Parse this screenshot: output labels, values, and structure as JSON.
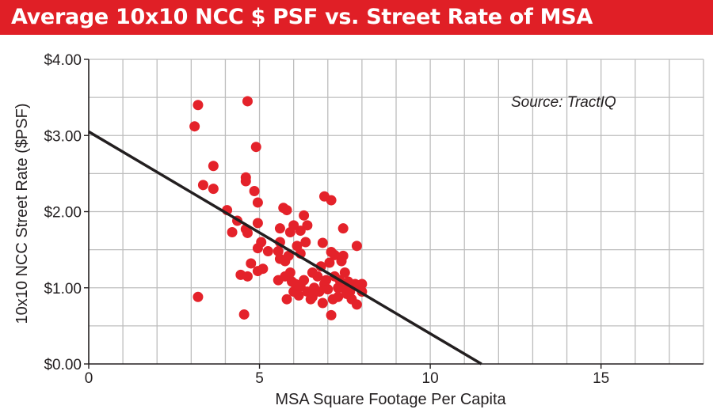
{
  "header": {
    "title": "Average 10x10 NCC $ PSF vs. Street Rate of MSA"
  },
  "colors": {
    "banner": "#e01f26",
    "point": "#e4222a",
    "trend": "#231f20",
    "grid": "#bdbdbd"
  },
  "chart_data": {
    "type": "scatter",
    "title": "Average 10x10 NCC $ PSF vs. Street Rate of MSA",
    "xlabel": "MSA Square Footage Per Capita",
    "ylabel": "10x10 NCC Street Rate ($PSF)",
    "annotation": "Source: TractIQ",
    "xlim": [
      0,
      18
    ],
    "ylim": [
      0,
      4
    ],
    "x_ticks": [
      0,
      5,
      10,
      15
    ],
    "x_tick_labels": [
      "0",
      "5",
      "10",
      "15"
    ],
    "y_ticks": [
      0,
      1,
      2,
      3,
      4
    ],
    "y_tick_labels": [
      "$0.00",
      "$1.00",
      "$2.00",
      "$3.00",
      "$4.00"
    ],
    "grid": true,
    "trendline": {
      "x": [
        0,
        11.5
      ],
      "y": [
        3.05,
        0.0
      ]
    },
    "points": [
      [
        3.2,
        3.4
      ],
      [
        3.1,
        3.12
      ],
      [
        4.65,
        3.45
      ],
      [
        3.65,
        2.6
      ],
      [
        3.35,
        2.35
      ],
      [
        3.65,
        2.3
      ],
      [
        4.9,
        2.85
      ],
      [
        4.6,
        2.45
      ],
      [
        4.6,
        2.4
      ],
      [
        4.85,
        2.27
      ],
      [
        4.95,
        2.12
      ],
      [
        6.9,
        2.2
      ],
      [
        7.1,
        2.15
      ],
      [
        4.05,
        2.02
      ],
      [
        4.35,
        1.88
      ],
      [
        4.2,
        1.73
      ],
      [
        4.6,
        1.77
      ],
      [
        4.65,
        1.72
      ],
      [
        4.95,
        1.85
      ],
      [
        5.7,
        2.05
      ],
      [
        5.8,
        2.02
      ],
      [
        6.0,
        1.82
      ],
      [
        6.3,
        1.95
      ],
      [
        6.4,
        1.82
      ],
      [
        6.2,
        1.75
      ],
      [
        5.6,
        1.78
      ],
      [
        5.6,
        1.6
      ],
      [
        5.55,
        1.48
      ],
      [
        5.9,
        1.73
      ],
      [
        6.35,
        1.6
      ],
      [
        6.85,
        1.59
      ],
      [
        7.45,
        1.78
      ],
      [
        7.85,
        1.55
      ],
      [
        5.05,
        1.6
      ],
      [
        4.95,
        1.52
      ],
      [
        5.25,
        1.48
      ],
      [
        5.6,
        1.38
      ],
      [
        5.75,
        1.35
      ],
      [
        5.85,
        1.42
      ],
      [
        6.1,
        1.55
      ],
      [
        6.2,
        1.45
      ],
      [
        7.1,
        1.47
      ],
      [
        7.2,
        1.43
      ],
      [
        7.45,
        1.42
      ],
      [
        7.4,
        1.35
      ],
      [
        7.05,
        1.33
      ],
      [
        6.8,
        1.28
      ],
      [
        4.75,
        1.32
      ],
      [
        4.95,
        1.22
      ],
      [
        5.1,
        1.25
      ],
      [
        4.45,
        1.17
      ],
      [
        4.65,
        1.15
      ],
      [
        5.55,
        1.1
      ],
      [
        5.75,
        1.15
      ],
      [
        5.9,
        1.2
      ],
      [
        6.05,
        1.05
      ],
      [
        6.3,
        1.1
      ],
      [
        6.55,
        1.2
      ],
      [
        6.7,
        1.15
      ],
      [
        6.9,
        1.05
      ],
      [
        7.2,
        1.15
      ],
      [
        7.35,
        1.1
      ],
      [
        7.5,
        1.2
      ],
      [
        7.6,
        1.08
      ],
      [
        7.8,
        1.05
      ],
      [
        7.95,
        1.02
      ],
      [
        8.0,
        0.95
      ],
      [
        6.0,
        0.95
      ],
      [
        6.15,
        0.9
      ],
      [
        6.4,
        0.95
      ],
      [
        6.55,
        0.88
      ],
      [
        6.75,
        0.95
      ],
      [
        7.0,
        0.98
      ],
      [
        7.15,
        0.85
      ],
      [
        7.3,
        0.88
      ],
      [
        7.55,
        0.92
      ],
      [
        7.7,
        0.85
      ],
      [
        7.85,
        0.78
      ],
      [
        5.8,
        0.85
      ],
      [
        6.5,
        0.85
      ],
      [
        6.85,
        0.8
      ],
      [
        7.3,
        1.0
      ],
      [
        6.2,
        1.02
      ],
      [
        5.95,
        1.08
      ],
      [
        7.1,
        0.64
      ],
      [
        3.2,
        0.88
      ],
      [
        4.55,
        0.65
      ],
      [
        7.45,
        1.0
      ],
      [
        6.6,
        1.0
      ],
      [
        7.65,
        0.95
      ],
      [
        8.0,
        1.05
      ],
      [
        6.95,
        1.1
      ]
    ]
  }
}
